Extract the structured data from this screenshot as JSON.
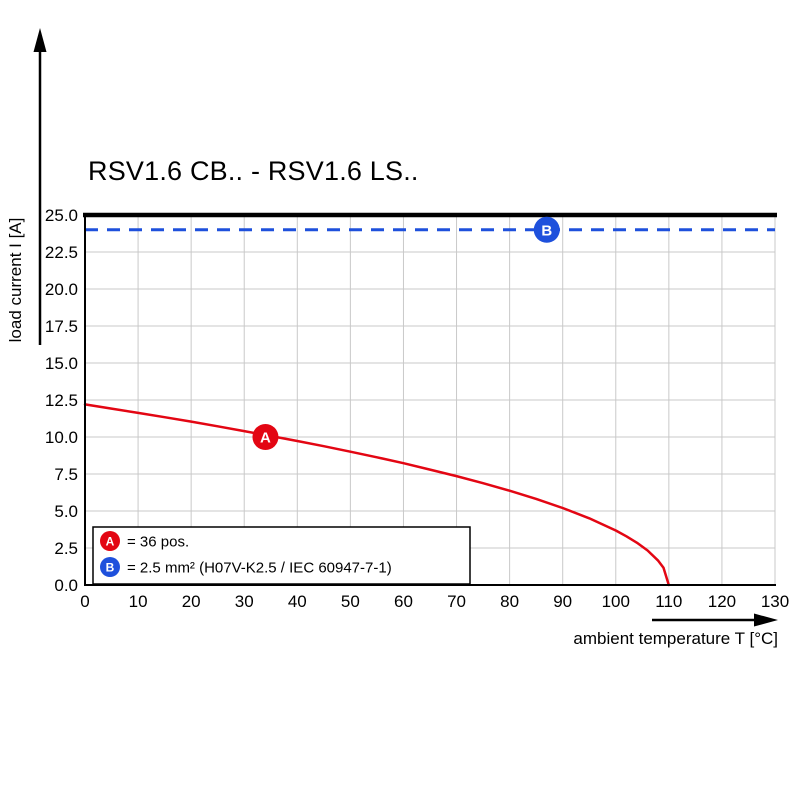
{
  "chart_data": {
    "type": "line",
    "title": "RSV1.6 CB.. - RSV1.6 LS..",
    "xlabel": "ambient temperature T [°C]",
    "ylabel": "load current I [A]",
    "xlim": [
      0,
      130
    ],
    "ylim": [
      0,
      25
    ],
    "x_ticks": [
      0,
      10,
      20,
      30,
      40,
      50,
      60,
      70,
      80,
      90,
      100,
      110,
      120,
      130
    ],
    "y_ticks": [
      0,
      2.5,
      5,
      7.5,
      10,
      12.5,
      15,
      17.5,
      20,
      22.5,
      25
    ],
    "grid": true,
    "legend_position": "bottom-left-inside",
    "colors": {
      "curve_a": "#e30613",
      "line_b": "#1e50dc",
      "grid": "#c9c9c9",
      "axis": "#000000",
      "background": "#ffffff"
    },
    "series": [
      {
        "name": "A",
        "kind": "curve",
        "style": "solid",
        "color_key": "curve_a",
        "points": [
          [
            0,
            12.2
          ],
          [
            5,
            11.92
          ],
          [
            10,
            11.63
          ],
          [
            15,
            11.34
          ],
          [
            20,
            11.04
          ],
          [
            25,
            10.72
          ],
          [
            30,
            10.4
          ],
          [
            35,
            10.07
          ],
          [
            40,
            9.73
          ],
          [
            45,
            9.38
          ],
          [
            50,
            9.01
          ],
          [
            55,
            8.63
          ],
          [
            60,
            8.23
          ],
          [
            65,
            7.8
          ],
          [
            70,
            7.36
          ],
          [
            75,
            6.88
          ],
          [
            80,
            6.37
          ],
          [
            85,
            5.82
          ],
          [
            90,
            5.2
          ],
          [
            95,
            4.51
          ],
          [
            100,
            3.68
          ],
          [
            102,
            3.29
          ],
          [
            104,
            2.85
          ],
          [
            106,
            2.33
          ],
          [
            108,
            1.64
          ],
          [
            109,
            1.16
          ],
          [
            110,
            0
          ]
        ],
        "marker": {
          "x": 34,
          "y": 10,
          "label": "A"
        }
      },
      {
        "name": "B",
        "kind": "hline",
        "style": "dashed",
        "color_key": "line_b",
        "y": 24,
        "marker": {
          "x": 87,
          "y": 24,
          "label": "B"
        }
      }
    ],
    "legend": {
      "items": [
        {
          "badge": "A",
          "color_key": "curve_a",
          "text": "= 36 pos."
        },
        {
          "badge": "B",
          "color_key": "line_b",
          "text": "= 2.5 mm² (H07V-K2.5 / IEC 60947-7-1)"
        }
      ]
    }
  }
}
